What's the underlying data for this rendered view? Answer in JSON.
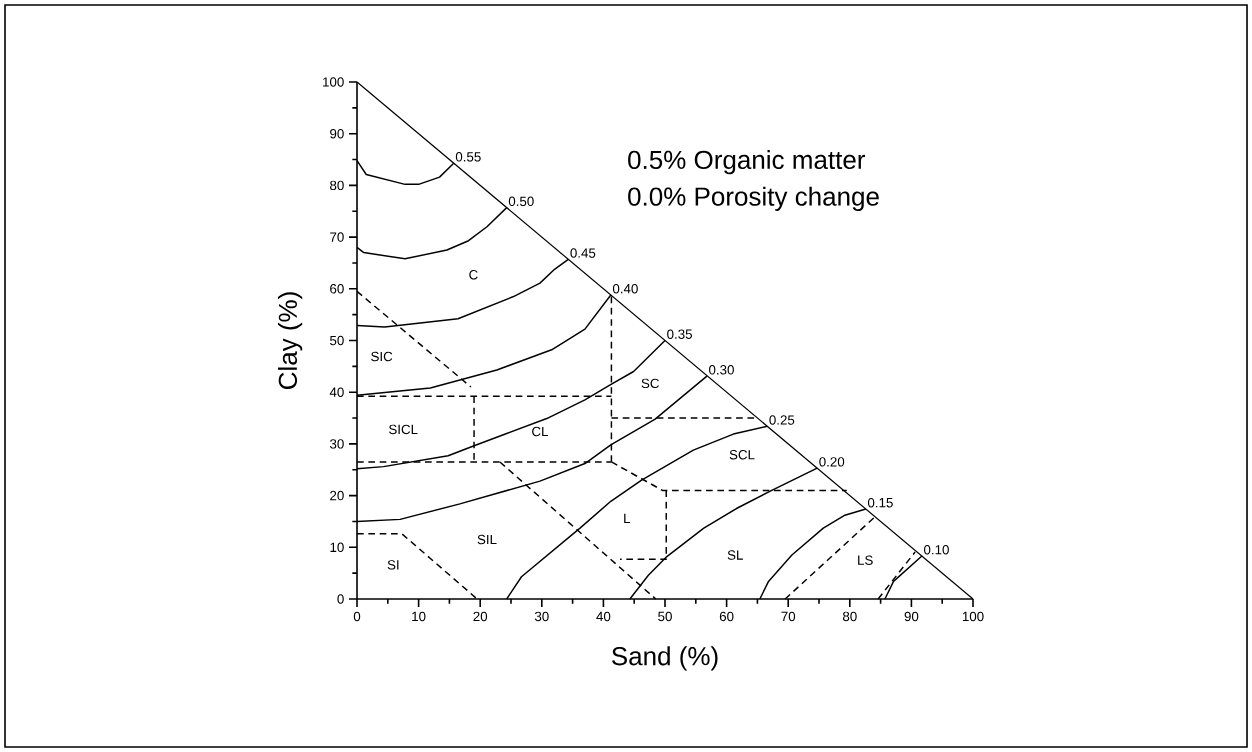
{
  "chart_data": {
    "type": "line",
    "xlabel": "Sand (%)",
    "ylabel": "Clay (%)",
    "xlim": [
      0,
      100
    ],
    "ylim": [
      0,
      100
    ],
    "xticks": [
      0,
      10,
      20,
      30,
      40,
      50,
      60,
      70,
      80,
      90,
      100
    ],
    "yticks": [
      0,
      10,
      20,
      30,
      40,
      50,
      60,
      70,
      80,
      90,
      100
    ],
    "annotations": [
      "0.5% Organic matter",
      "0.0% Porosity change",
      "C",
      "SIC",
      "SICL",
      "CL",
      "SC",
      "SCL",
      "L",
      "SIL",
      "SI",
      "SL",
      "LS"
    ],
    "series": [
      {
        "color": "#000000",
        "x": [
          0,
          100
        ],
        "values": [
          100,
          0
        ]
      },
      {
        "name": "0.55",
        "color": "#000000",
        "x": [
          0,
          1.5,
          7.8,
          10,
          13.4,
          15.7
        ],
        "values": [
          84.8,
          82.1,
          80.2,
          80.2,
          81.6,
          84.3
        ]
      },
      {
        "name": "0.50",
        "color": "#000000",
        "x": [
          0,
          1.1,
          7.8,
          14.6,
          18.1,
          21.1,
          24.3
        ],
        "values": [
          68.0,
          67.0,
          65.8,
          67.5,
          69.3,
          72.0,
          75.7
        ]
      },
      {
        "name": "0.45",
        "color": "#000000",
        "x": [
          0,
          4.5,
          16.4,
          25.4,
          29.7,
          31.9,
          34.3
        ],
        "values": [
          52.9,
          52.6,
          54.2,
          58.5,
          61.1,
          63.6,
          65.7
        ]
      },
      {
        "name": "0.40",
        "color": "#000000",
        "x": [
          0,
          11.9,
          22.7,
          31.6,
          37.0,
          41.2
        ],
        "values": [
          39.4,
          40.8,
          44.3,
          48.2,
          52.2,
          58.8
        ]
      },
      {
        "name": "0.35",
        "color": "#000000",
        "x": [
          0,
          4.3,
          14.8,
          18.9,
          24.3,
          30.8,
          37.0,
          41.1,
          44.9,
          50.0
        ],
        "values": [
          25.2,
          25.6,
          27.7,
          29.6,
          32.0,
          34.9,
          38.5,
          41.4,
          44.0,
          50.0
        ]
      },
      {
        "name": "0.30",
        "color": "#000000",
        "x": [
          0,
          7.0,
          16.7,
          29.7,
          37.0,
          41.2,
          48.4,
          56.8
        ],
        "values": [
          15.0,
          15.4,
          18.4,
          22.8,
          26.2,
          29.8,
          34.8,
          43.1
        ]
      },
      {
        "name": "0.25",
        "color": "#000000",
        "x": [
          24.3,
          26.7,
          36.2,
          41.2,
          46.2,
          54.6,
          61.1,
          66.6
        ],
        "values": [
          0,
          4.3,
          13.7,
          18.9,
          23.0,
          28.8,
          31.9,
          33.4
        ]
      },
      {
        "name": "0.20",
        "color": "#000000",
        "x": [
          44.3,
          47.3,
          50.3,
          56.3,
          61.6,
          67.0,
          74.7
        ],
        "values": [
          0,
          4.6,
          8.2,
          13.7,
          17.5,
          20.8,
          25.3
        ]
      },
      {
        "name": "0.15",
        "color": "#000000",
        "x": [
          65.4,
          66.8,
          70.6,
          75.7,
          79.2,
          82.6
        ],
        "values": [
          0,
          3.4,
          8.5,
          13.7,
          16.2,
          17.4
        ]
      },
      {
        "name": "0.10",
        "color": "#000000",
        "x": [
          85.7,
          87.1,
          91.7
        ],
        "values": [
          0,
          3.4,
          8.3
        ]
      },
      {
        "color": "#000000",
        "line_style": "dashed",
        "x": [
          0,
          18.5
        ],
        "values": [
          59.5,
          41.0
        ]
      },
      {
        "color": "#000000",
        "line_style": "dashed",
        "x": [
          0,
          41.3
        ],
        "values": [
          39.2,
          39.2
        ]
      },
      {
        "color": "#000000",
        "line_style": "dashed",
        "x": [
          19.0,
          19.0
        ],
        "values": [
          39.2,
          26.5
        ]
      },
      {
        "color": "#000000",
        "line_style": "dashed",
        "x": [
          0,
          41.3
        ],
        "values": [
          26.5,
          26.5
        ]
      },
      {
        "color": "#000000",
        "line_style": "dashed",
        "x": [
          41.3,
          41.3
        ],
        "values": [
          58.5,
          26.5
        ]
      },
      {
        "color": "#000000",
        "line_style": "dashed",
        "x": [
          41.3,
          65.0
        ],
        "values": [
          35.0,
          35.0
        ]
      },
      {
        "color": "#000000",
        "line_style": "dashed",
        "x": [
          41.3,
          49.6,
          50.2,
          79.5
        ],
        "values": [
          26.5,
          21.0,
          21.0,
          21.0
        ]
      },
      {
        "color": "#000000",
        "line_style": "dashed",
        "x": [
          50.2,
          50.2,
          42.7
        ],
        "values": [
          21.0,
          7.7,
          7.7
        ]
      },
      {
        "color": "#000000",
        "line_style": "dashed",
        "x": [
          23.2,
          48.5
        ],
        "values": [
          26.5,
          0
        ]
      },
      {
        "color": "#000000",
        "line_style": "dashed",
        "x": [
          0,
          7.3,
          19.5
        ],
        "values": [
          12.6,
          12.6,
          0
        ]
      },
      {
        "color": "#000000",
        "line_style": "dashed",
        "x": [
          69.5,
          84.0
        ],
        "values": [
          0,
          15.8
        ]
      },
      {
        "color": "#000000",
        "line_style": "dashed",
        "x": [
          84.6,
          90.6
        ],
        "values": [
          0,
          9.1
        ]
      }
    ]
  }
}
